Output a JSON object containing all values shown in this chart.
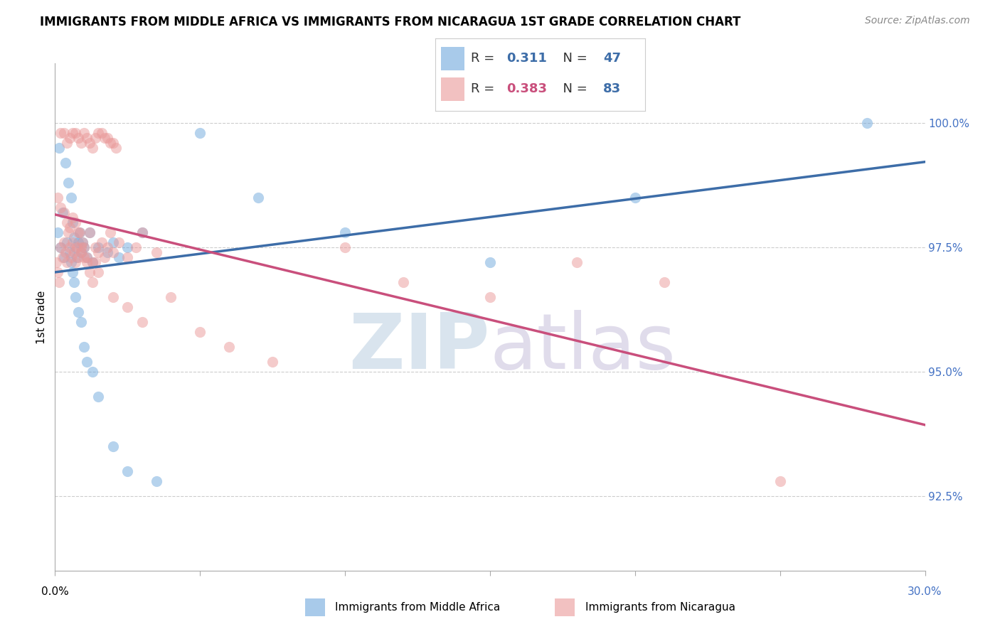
{
  "title": "IMMIGRANTS FROM MIDDLE AFRICA VS IMMIGRANTS FROM NICARAGUA 1ST GRADE CORRELATION CHART",
  "source": "Source: ZipAtlas.com",
  "ylabel": "1st Grade",
  "ylabel_right_ticks": [
    92.5,
    95.0,
    97.5,
    100.0
  ],
  "ylabel_right_labels": [
    "92.5%",
    "95.0%",
    "97.5%",
    "100.0%"
  ],
  "xmin": 0.0,
  "xmax": 30.0,
  "ymin": 91.0,
  "ymax": 101.2,
  "blue_R": 0.311,
  "blue_N": 47,
  "pink_R": 0.383,
  "pink_N": 83,
  "blue_color": "#6fa8dc",
  "pink_color": "#ea9999",
  "blue_line_color": "#3d6da8",
  "pink_line_color": "#c94f7c",
  "legend_label_blue": "Immigrants from Middle Africa",
  "legend_label_pink": "Immigrants from Nicaragua",
  "blue_scatter_x": [
    0.1,
    0.2,
    0.25,
    0.3,
    0.4,
    0.5,
    0.55,
    0.6,
    0.65,
    0.7,
    0.75,
    0.8,
    0.85,
    0.9,
    0.95,
    1.0,
    1.1,
    1.2,
    1.3,
    1.5,
    1.8,
    2.0,
    2.2,
    2.5,
    3.0,
    0.15,
    0.35,
    0.45,
    0.55,
    0.6,
    0.65,
    0.7,
    0.8,
    0.9,
    1.0,
    1.1,
    1.3,
    1.5,
    2.0,
    2.5,
    3.5,
    5.0,
    7.0,
    10.0,
    15.0,
    20.0,
    28.0
  ],
  "blue_scatter_y": [
    97.8,
    97.5,
    98.2,
    97.3,
    97.6,
    97.4,
    97.2,
    98.0,
    97.7,
    97.5,
    97.3,
    97.6,
    97.8,
    97.4,
    97.6,
    97.5,
    97.3,
    97.8,
    97.2,
    97.5,
    97.4,
    97.6,
    97.3,
    97.5,
    97.8,
    99.5,
    99.2,
    98.8,
    98.5,
    97.0,
    96.8,
    96.5,
    96.2,
    96.0,
    95.5,
    95.2,
    95.0,
    94.5,
    93.5,
    93.0,
    92.8,
    99.8,
    98.5,
    97.8,
    97.2,
    98.5,
    100.0
  ],
  "pink_scatter_x": [
    0.05,
    0.1,
    0.15,
    0.2,
    0.25,
    0.3,
    0.35,
    0.4,
    0.45,
    0.5,
    0.55,
    0.6,
    0.65,
    0.7,
    0.75,
    0.8,
    0.85,
    0.9,
    0.95,
    1.0,
    1.1,
    1.2,
    1.3,
    1.4,
    1.5,
    1.6,
    1.7,
    1.8,
    1.9,
    2.0,
    2.2,
    2.5,
    2.8,
    3.0,
    3.5,
    0.2,
    0.4,
    0.6,
    0.8,
    1.0,
    1.2,
    1.4,
    1.6,
    1.8,
    2.0,
    0.3,
    0.5,
    0.7,
    0.9,
    1.1,
    1.3,
    1.5,
    1.7,
    1.9,
    2.1,
    0.1,
    0.2,
    0.3,
    0.4,
    0.5,
    0.6,
    0.7,
    0.8,
    0.9,
    1.0,
    1.1,
    1.2,
    1.3,
    1.4,
    1.5,
    2.0,
    2.5,
    3.0,
    4.0,
    5.0,
    6.0,
    7.5,
    10.0,
    12.0,
    15.0,
    18.0,
    21.0,
    25.0
  ],
  "pink_scatter_y": [
    97.2,
    97.0,
    96.8,
    97.5,
    97.3,
    97.6,
    97.4,
    97.2,
    97.8,
    97.5,
    97.3,
    97.6,
    97.4,
    97.2,
    97.5,
    97.3,
    97.8,
    97.4,
    97.6,
    97.5,
    97.3,
    97.8,
    97.2,
    97.5,
    97.4,
    97.6,
    97.3,
    97.5,
    97.8,
    97.4,
    97.6,
    97.3,
    97.5,
    97.8,
    97.4,
    99.8,
    99.6,
    99.8,
    99.7,
    99.8,
    99.6,
    99.7,
    99.8,
    99.7,
    99.6,
    99.8,
    99.7,
    99.8,
    99.6,
    99.7,
    99.5,
    99.8,
    99.7,
    99.6,
    99.5,
    98.5,
    98.3,
    98.2,
    98.0,
    97.9,
    98.1,
    98.0,
    97.8,
    97.5,
    97.3,
    97.2,
    97.0,
    96.8,
    97.2,
    97.0,
    96.5,
    96.3,
    96.0,
    96.5,
    95.8,
    95.5,
    95.2,
    97.5,
    96.8,
    96.5,
    97.2,
    96.8,
    92.8
  ]
}
